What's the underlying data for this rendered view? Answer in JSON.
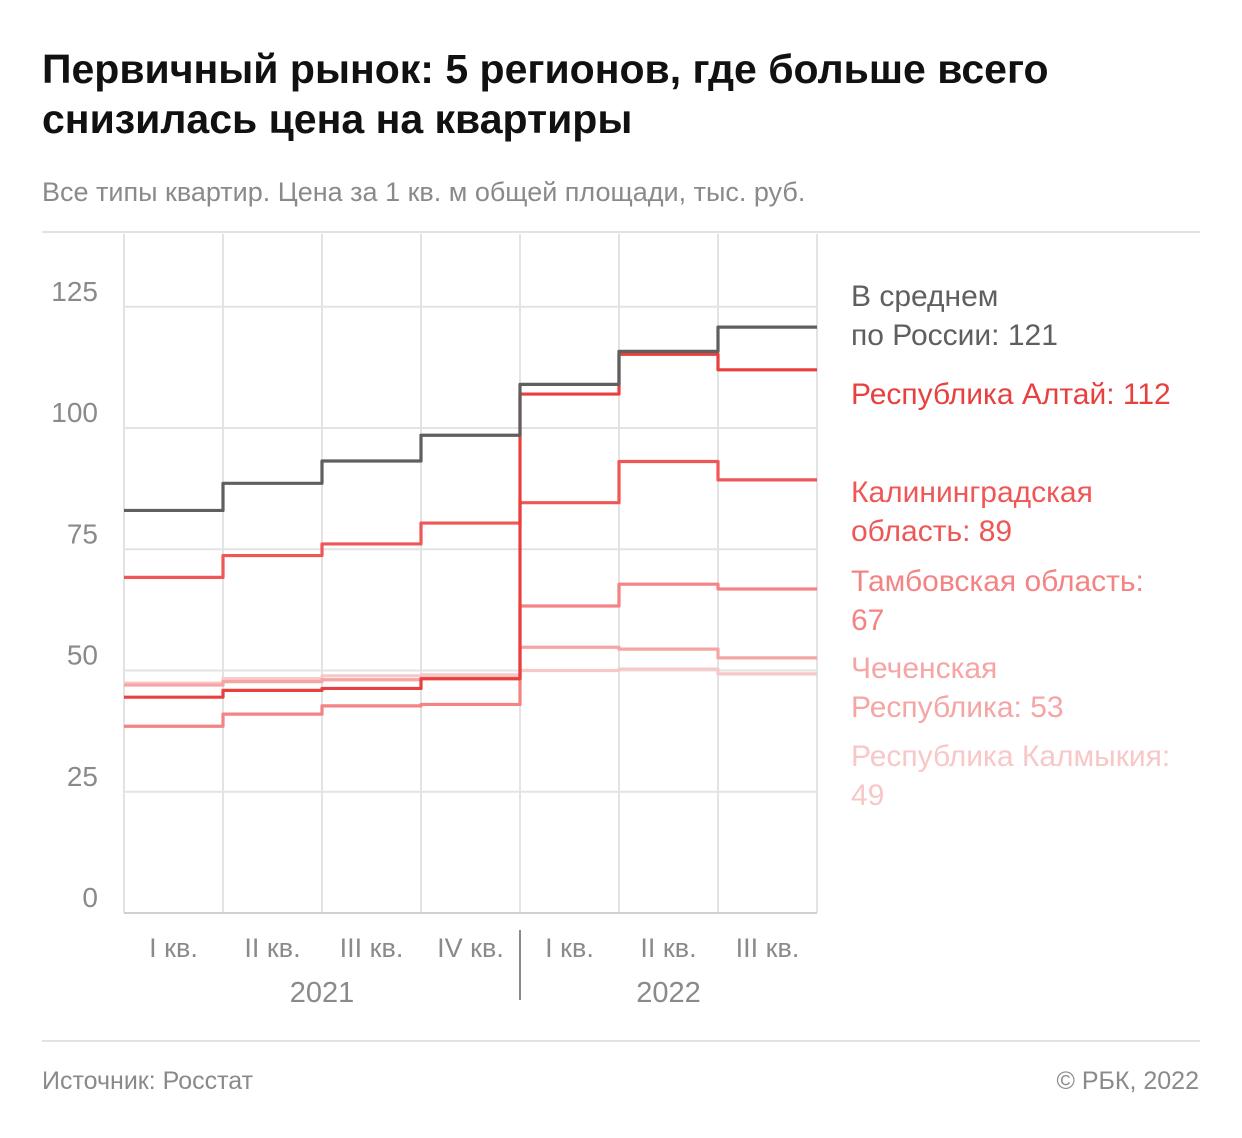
{
  "title": "Первичный рынок: 5 регионов, где больше всего снизилась цена на квартиры",
  "subtitle": "Все типы квартир. Цена за 1 кв. м общей площади, тыс. руб.",
  "source": "Источник: Росстат",
  "copyright": "© РБК, 2022",
  "chart_data": {
    "type": "line",
    "step": true,
    "categories": [
      "I кв.",
      "II кв.",
      "III кв.",
      "IV кв.",
      "I кв.",
      "II кв.",
      "III кв."
    ],
    "years": [
      {
        "label": "2021",
        "from": 0,
        "to": 3
      },
      {
        "label": "2022",
        "from": 4,
        "to": 6
      }
    ],
    "ylim": [
      0,
      140
    ],
    "yticks": [
      0,
      25,
      50,
      75,
      100,
      125
    ],
    "grid": true,
    "legend": "right",
    "series": [
      {
        "name": "В среднем по России",
        "label_lines": [
          "В среднем",
          "по России: 121"
        ],
        "color": "#5f5f5f",
        "values": [
          83,
          88.6,
          93.2,
          98.5,
          109,
          115.8,
          120.8
        ]
      },
      {
        "name": "Республика Алтай",
        "label_lines": [
          "Республика Алтай: 112"
        ],
        "color": "#e8403f",
        "values": [
          44.5,
          45.9,
          46.3,
          48.3,
          107,
          115.2,
          112
        ]
      },
      {
        "name": "Калининградская область",
        "label_lines": [
          "Калининградская",
          "область: 89"
        ],
        "color": "#ef5757",
        "values": [
          69.2,
          73.7,
          76.1,
          80.4,
          84.6,
          93.1,
          89.3
        ]
      },
      {
        "name": "Тамбовская область",
        "label_lines": [
          "Тамбовская область:",
          "67"
        ],
        "color": "#f48383",
        "values": [
          38.5,
          41,
          42.7,
          43,
          63.3,
          67.8,
          66.8
        ]
      },
      {
        "name": "Чеченская Республика",
        "label_lines": [
          "Чеченская",
          "Республика: 53"
        ],
        "color": "#f6a5a5",
        "values": [
          47,
          47.7,
          48.1,
          48.4,
          54.8,
          54.4,
          52.6
        ]
      },
      {
        "name": "Республика Калмыкия",
        "label_lines": [
          "Республика Калмыкия:",
          "49"
        ],
        "color": "#f8c7c7",
        "values": [
          47.4,
          48.3,
          48.9,
          49.1,
          50,
          50.3,
          49.3
        ]
      }
    ]
  }
}
